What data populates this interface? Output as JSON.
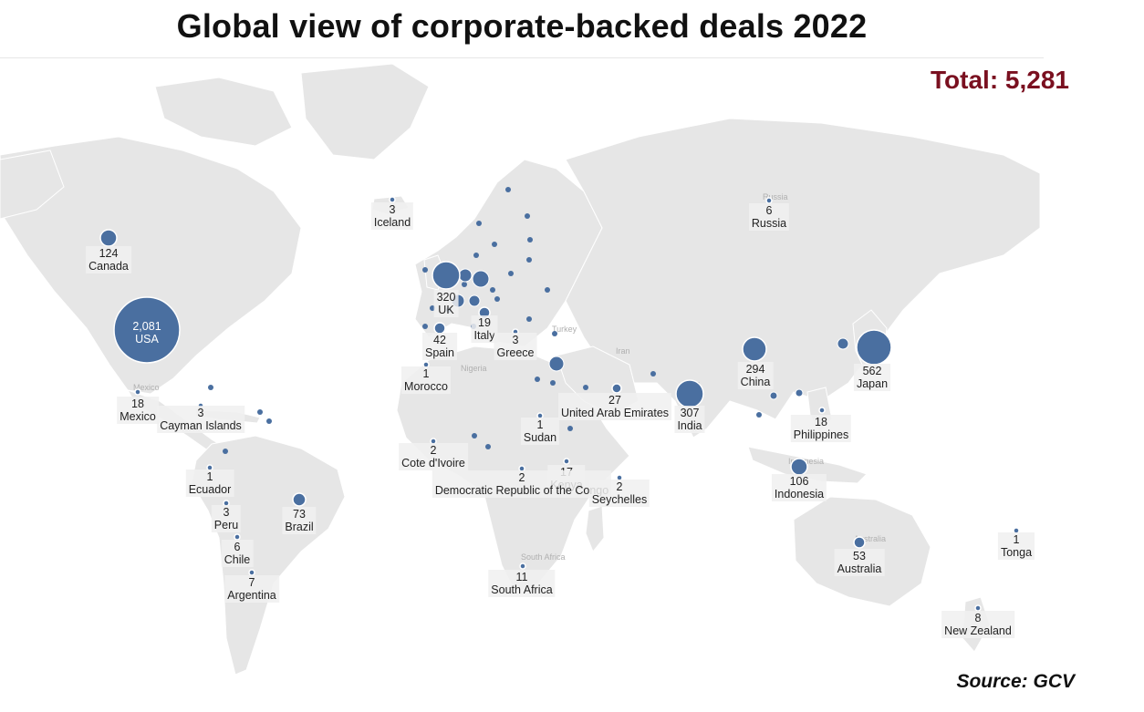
{
  "title": "Global view of corporate-backed deals 2022",
  "total_label": "Total: 5,281",
  "source_label": "Source: GCV",
  "colors": {
    "bubble": "#4a6fa0",
    "land": "#e6e6e6",
    "total": "#7a1020"
  },
  "map_labels": [
    "Russia",
    "Iran",
    "Turkey",
    "Nigeria",
    "South Africa",
    "India",
    "Australia",
    "Mexico",
    "Indonesia"
  ],
  "countries": [
    {
      "country": "USA",
      "deals": "2,081"
    },
    {
      "country": "Japan",
      "deals": "562"
    },
    {
      "country": "UK",
      "deals": "320"
    },
    {
      "country": "India",
      "deals": "307"
    },
    {
      "country": "China",
      "deals": "294"
    },
    {
      "country": "Canada",
      "deals": "124"
    },
    {
      "country": "Indonesia",
      "deals": "106"
    },
    {
      "country": "Brazil",
      "deals": "73"
    },
    {
      "country": "Australia",
      "deals": "53"
    },
    {
      "country": "Spain",
      "deals": "42"
    },
    {
      "country": "United Arab Emirates",
      "deals": "27"
    },
    {
      "country": "Italy",
      "deals": "19"
    },
    {
      "country": "Mexico",
      "deals": "18"
    },
    {
      "country": "Philippines",
      "deals": "18"
    },
    {
      "country": "Kenya",
      "deals": "17"
    },
    {
      "country": "South Africa",
      "deals": "11"
    },
    {
      "country": "New Zealand",
      "deals": "8"
    },
    {
      "country": "Argentina",
      "deals": "7"
    },
    {
      "country": "Russia",
      "deals": "6"
    },
    {
      "country": "Chile",
      "deals": "6"
    },
    {
      "country": "Iceland",
      "deals": "3"
    },
    {
      "country": "Greece",
      "deals": "3"
    },
    {
      "country": "Cayman Islands",
      "deals": "3"
    },
    {
      "country": "Peru",
      "deals": "3"
    },
    {
      "country": "Cote d'Ivoire",
      "deals": "2"
    },
    {
      "country": "Democratic Republic of the Congo",
      "deals": "2"
    },
    {
      "country": "Seychelles",
      "deals": "2"
    },
    {
      "country": "Morocco",
      "deals": "1"
    },
    {
      "country": "Sudan",
      "deals": "1"
    },
    {
      "country": "Ecuador",
      "deals": "1"
    },
    {
      "country": "Tonga",
      "deals": "1"
    }
  ]
}
